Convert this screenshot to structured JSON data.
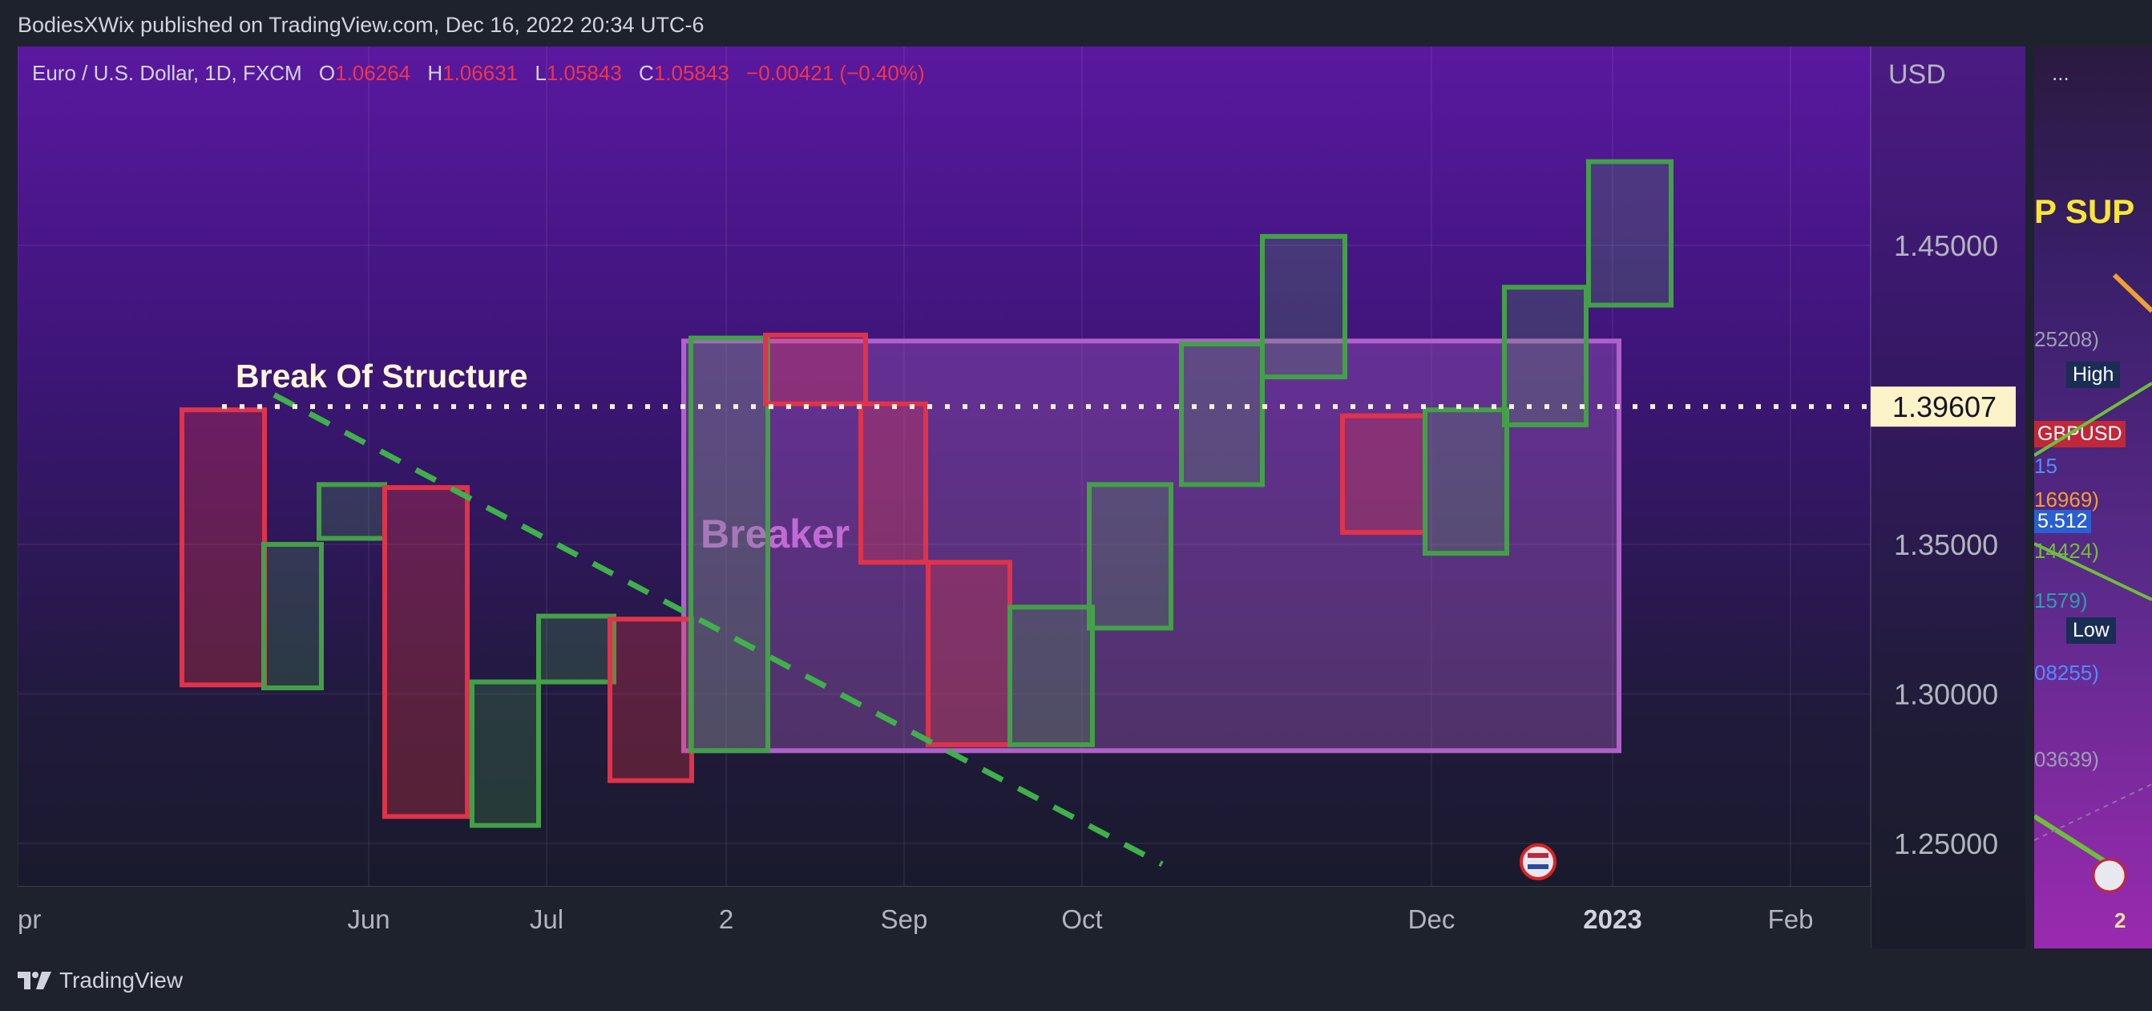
{
  "header": {
    "published_line": "BodiesXWix published on TradingView.com, Dec 16, 2022 20:34 UTC-6"
  },
  "legend": {
    "symbol": "Euro / U.S. Dollar, 1D, FXCM",
    "open_label": "O",
    "open": "1.06264",
    "high_label": "H",
    "high": "1.06631",
    "low_label": "L",
    "low": "1.05843",
    "close_label": "C",
    "close": "1.05843",
    "change": "−0.00421 (−0.40%)"
  },
  "chart_data": {
    "type": "candlestick",
    "currency": "USD",
    "y_range": [
      1.2355,
      1.5165
    ],
    "y_ticks": [
      "1.25000",
      "1.30000",
      "1.35000",
      "1.45000"
    ],
    "x_ticks": [
      "pr",
      "Jun",
      "Jul",
      "2",
      "Sep",
      "Oct",
      "Dec",
      "2023",
      "Feb"
    ],
    "candles": [
      {
        "open": 1.395,
        "close": 1.303,
        "dir": "down"
      },
      {
        "open": 1.302,
        "close": 1.35,
        "dir": "up"
      },
      {
        "open": 1.352,
        "close": 1.37,
        "dir": "up"
      },
      {
        "open": 1.369,
        "close": 1.259,
        "dir": "down"
      },
      {
        "open": 1.256,
        "close": 1.304,
        "dir": "up"
      },
      {
        "open": 1.304,
        "close": 1.326,
        "dir": "up"
      },
      {
        "open": 1.325,
        "close": 1.271,
        "dir": "down"
      },
      {
        "open": 1.281,
        "close": 1.419,
        "dir": "up"
      },
      {
        "open": 1.42,
        "close": 1.397,
        "dir": "down"
      },
      {
        "open": 1.397,
        "close": 1.344,
        "dir": "down"
      },
      {
        "open": 1.344,
        "close": 1.283,
        "dir": "down"
      },
      {
        "open": 1.283,
        "close": 1.329,
        "dir": "up"
      },
      {
        "open": 1.322,
        "close": 1.37,
        "dir": "up"
      },
      {
        "open": 1.37,
        "close": 1.417,
        "dir": "up"
      },
      {
        "open": 1.406,
        "close": 1.453,
        "dir": "up"
      },
      {
        "open": 1.393,
        "close": 1.354,
        "dir": "down"
      },
      {
        "open": 1.347,
        "close": 1.395,
        "dir": "up"
      },
      {
        "open": 1.39,
        "close": 1.436,
        "dir": "up"
      },
      {
        "open": 1.43,
        "close": 1.478,
        "dir": "up"
      }
    ],
    "break_of_structure": {
      "label": "Break Of Structure",
      "price": "1.39607"
    },
    "breaker_zone": {
      "label": "Breaker",
      "top": 1.418,
      "bottom": 1.281
    },
    "trendline": {
      "from_price": 1.4,
      "to_price": 1.243
    }
  },
  "side_panel": {
    "items": [
      "...",
      "P SUP",
      "25208)",
      "High",
      "GBPUSD",
      "15",
      "16969)",
      "5.512",
      "14424)",
      "1579)",
      "Low",
      "08255)",
      "03639)",
      "2"
    ]
  },
  "footer": {
    "brand": "TradingView"
  },
  "colors": {
    "bull": "#4caf50",
    "bear": "#f23645",
    "breaker": "#b061c9",
    "bos": "#f5f0d8",
    "trend": "#3fb14a"
  }
}
